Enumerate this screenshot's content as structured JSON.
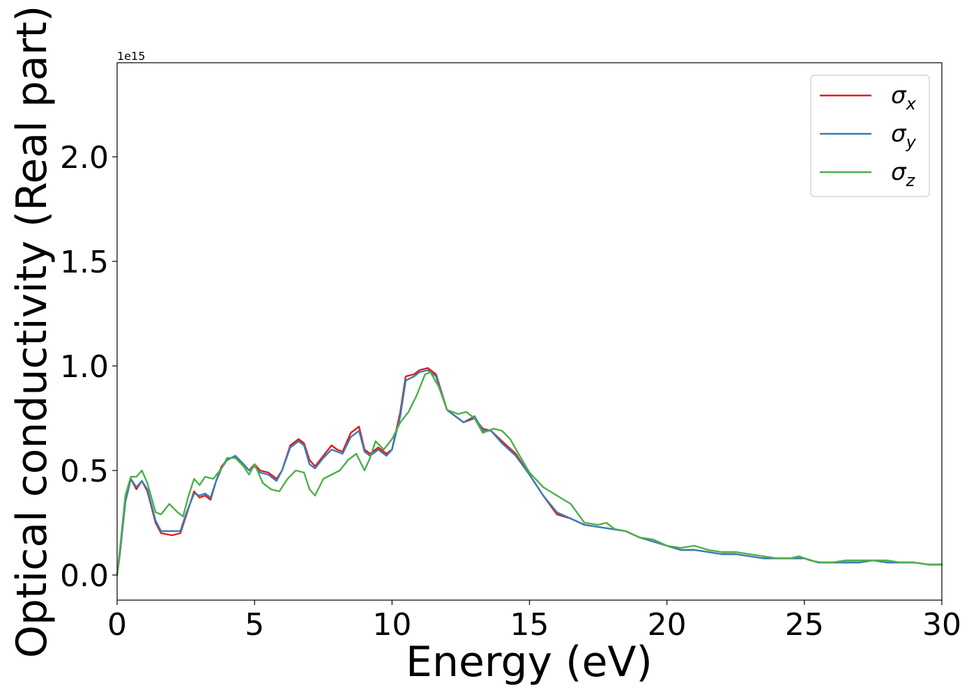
{
  "chart_data": {
    "type": "line",
    "title": "",
    "xlabel": "Energy (eV)",
    "ylabel": "Optical conductivity (Real part)",
    "offset_text": "1e15",
    "xlim": [
      0,
      30
    ],
    "ylim": [
      -0.12,
      2.45
    ],
    "y_scale_factor": 1000000000000000.0,
    "x_ticks": [
      0,
      5,
      10,
      15,
      20,
      25,
      30
    ],
    "x_tick_labels": [
      "0",
      "5",
      "10",
      "15",
      "20",
      "25",
      "30"
    ],
    "y_ticks": [
      0.0,
      0.5,
      1.0,
      1.5,
      2.0
    ],
    "y_tick_labels": [
      "0.0",
      "0.5",
      "1.0",
      "1.5",
      "2.0"
    ],
    "grid": false,
    "legend_position": "top-right",
    "legend": [
      {
        "base": "σ",
        "sub": "x"
      },
      {
        "base": "σ",
        "sub": "y"
      },
      {
        "base": "σ",
        "sub": "z"
      }
    ],
    "series": [
      {
        "name": "σx",
        "color": "#e41a1c",
        "points": [
          [
            0,
            0
          ],
          [
            0.1,
            0.1
          ],
          [
            0.3,
            0.35
          ],
          [
            0.5,
            0.46
          ],
          [
            0.7,
            0.41
          ],
          [
            0.9,
            0.45
          ],
          [
            1.1,
            0.4
          ],
          [
            1.4,
            0.25
          ],
          [
            1.6,
            0.2
          ],
          [
            2.0,
            0.19
          ],
          [
            2.3,
            0.2
          ],
          [
            2.5,
            0.28
          ],
          [
            2.8,
            0.4
          ],
          [
            3.0,
            0.37
          ],
          [
            3.2,
            0.38
          ],
          [
            3.4,
            0.36
          ],
          [
            3.6,
            0.45
          ],
          [
            3.8,
            0.52
          ],
          [
            4.0,
            0.55
          ],
          [
            4.3,
            0.57
          ],
          [
            4.6,
            0.53
          ],
          [
            4.8,
            0.5
          ],
          [
            5.0,
            0.53
          ],
          [
            5.2,
            0.5
          ],
          [
            5.5,
            0.49
          ],
          [
            5.8,
            0.46
          ],
          [
            6.0,
            0.5
          ],
          [
            6.3,
            0.62
          ],
          [
            6.6,
            0.65
          ],
          [
            6.8,
            0.63
          ],
          [
            7.0,
            0.55
          ],
          [
            7.2,
            0.52
          ],
          [
            7.5,
            0.57
          ],
          [
            7.8,
            0.62
          ],
          [
            8.0,
            0.6
          ],
          [
            8.2,
            0.59
          ],
          [
            8.5,
            0.68
          ],
          [
            8.8,
            0.71
          ],
          [
            9.0,
            0.6
          ],
          [
            9.2,
            0.58
          ],
          [
            9.5,
            0.61
          ],
          [
            9.8,
            0.58
          ],
          [
            10.0,
            0.6
          ],
          [
            10.3,
            0.78
          ],
          [
            10.5,
            0.95
          ],
          [
            10.8,
            0.96
          ],
          [
            11.0,
            0.98
          ],
          [
            11.3,
            0.99
          ],
          [
            11.6,
            0.96
          ],
          [
            12.0,
            0.79
          ],
          [
            12.3,
            0.76
          ],
          [
            12.6,
            0.73
          ],
          [
            13.0,
            0.75
          ],
          [
            13.3,
            0.7
          ],
          [
            13.6,
            0.69
          ],
          [
            14.0,
            0.64
          ],
          [
            14.5,
            0.58
          ],
          [
            15.0,
            0.48
          ],
          [
            15.5,
            0.38
          ],
          [
            16.0,
            0.29
          ],
          [
            16.5,
            0.27
          ],
          [
            17.0,
            0.24
          ],
          [
            17.5,
            0.23
          ],
          [
            18.0,
            0.22
          ],
          [
            18.5,
            0.21
          ],
          [
            19.0,
            0.18
          ],
          [
            19.5,
            0.16
          ],
          [
            20.0,
            0.14
          ],
          [
            20.5,
            0.12
          ],
          [
            21.0,
            0.12
          ],
          [
            21.5,
            0.11
          ],
          [
            22.0,
            0.1
          ],
          [
            22.5,
            0.1
          ],
          [
            23.0,
            0.09
          ],
          [
            23.5,
            0.08
          ],
          [
            24.0,
            0.08
          ],
          [
            24.5,
            0.08
          ],
          [
            25.0,
            0.08
          ],
          [
            25.5,
            0.06
          ],
          [
            26.0,
            0.06
          ],
          [
            26.5,
            0.06
          ],
          [
            27.0,
            0.06
          ],
          [
            27.5,
            0.07
          ],
          [
            28.0,
            0.06
          ],
          [
            28.5,
            0.06
          ],
          [
            29.0,
            0.06
          ],
          [
            29.5,
            0.05
          ],
          [
            30.0,
            0.05
          ]
        ]
      },
      {
        "name": "σy",
        "color": "#377eb8",
        "points": [
          [
            0,
            0
          ],
          [
            0.1,
            0.1
          ],
          [
            0.3,
            0.35
          ],
          [
            0.5,
            0.46
          ],
          [
            0.7,
            0.42
          ],
          [
            0.9,
            0.45
          ],
          [
            1.1,
            0.41
          ],
          [
            1.4,
            0.26
          ],
          [
            1.6,
            0.21
          ],
          [
            2.0,
            0.21
          ],
          [
            2.3,
            0.21
          ],
          [
            2.5,
            0.29
          ],
          [
            2.8,
            0.39
          ],
          [
            3.0,
            0.38
          ],
          [
            3.2,
            0.39
          ],
          [
            3.4,
            0.37
          ],
          [
            3.6,
            0.45
          ],
          [
            3.8,
            0.51
          ],
          [
            4.0,
            0.55
          ],
          [
            4.3,
            0.57
          ],
          [
            4.6,
            0.53
          ],
          [
            4.8,
            0.5
          ],
          [
            5.0,
            0.52
          ],
          [
            5.2,
            0.49
          ],
          [
            5.5,
            0.48
          ],
          [
            5.8,
            0.45
          ],
          [
            6.0,
            0.5
          ],
          [
            6.3,
            0.61
          ],
          [
            6.6,
            0.64
          ],
          [
            6.8,
            0.62
          ],
          [
            7.0,
            0.53
          ],
          [
            7.2,
            0.51
          ],
          [
            7.5,
            0.56
          ],
          [
            7.8,
            0.6
          ],
          [
            8.0,
            0.59
          ],
          [
            8.2,
            0.58
          ],
          [
            8.5,
            0.66
          ],
          [
            8.8,
            0.69
          ],
          [
            9.0,
            0.59
          ],
          [
            9.2,
            0.57
          ],
          [
            9.5,
            0.6
          ],
          [
            9.8,
            0.57
          ],
          [
            10.0,
            0.6
          ],
          [
            10.3,
            0.76
          ],
          [
            10.5,
            0.93
          ],
          [
            10.8,
            0.95
          ],
          [
            11.0,
            0.97
          ],
          [
            11.3,
            0.98
          ],
          [
            11.6,
            0.95
          ],
          [
            12.0,
            0.79
          ],
          [
            12.3,
            0.76
          ],
          [
            12.6,
            0.73
          ],
          [
            13.0,
            0.76
          ],
          [
            13.3,
            0.69
          ],
          [
            13.6,
            0.69
          ],
          [
            14.0,
            0.63
          ],
          [
            14.5,
            0.57
          ],
          [
            15.0,
            0.48
          ],
          [
            15.5,
            0.38
          ],
          [
            16.0,
            0.3
          ],
          [
            16.5,
            0.27
          ],
          [
            17.0,
            0.24
          ],
          [
            17.5,
            0.23
          ],
          [
            18.0,
            0.22
          ],
          [
            18.5,
            0.21
          ],
          [
            19.0,
            0.18
          ],
          [
            19.5,
            0.16
          ],
          [
            20.0,
            0.14
          ],
          [
            20.5,
            0.12
          ],
          [
            21.0,
            0.12
          ],
          [
            21.5,
            0.11
          ],
          [
            22.0,
            0.1
          ],
          [
            22.5,
            0.1
          ],
          [
            23.0,
            0.09
          ],
          [
            23.5,
            0.08
          ],
          [
            24.0,
            0.08
          ],
          [
            24.5,
            0.08
          ],
          [
            25.0,
            0.08
          ],
          [
            25.5,
            0.06
          ],
          [
            26.0,
            0.06
          ],
          [
            26.5,
            0.06
          ],
          [
            27.0,
            0.06
          ],
          [
            27.5,
            0.07
          ],
          [
            28.0,
            0.06
          ],
          [
            28.5,
            0.06
          ],
          [
            29.0,
            0.06
          ],
          [
            29.5,
            0.05
          ],
          [
            30.0,
            0.05
          ]
        ]
      },
      {
        "name": "σz",
        "color": "#4daf4a",
        "points": [
          [
            0,
            0
          ],
          [
            0.1,
            0.12
          ],
          [
            0.3,
            0.38
          ],
          [
            0.5,
            0.47
          ],
          [
            0.7,
            0.47
          ],
          [
            0.9,
            0.5
          ],
          [
            1.1,
            0.44
          ],
          [
            1.4,
            0.3
          ],
          [
            1.6,
            0.29
          ],
          [
            1.9,
            0.34
          ],
          [
            2.2,
            0.3
          ],
          [
            2.4,
            0.28
          ],
          [
            2.6,
            0.38
          ],
          [
            2.8,
            0.46
          ],
          [
            3.0,
            0.43
          ],
          [
            3.2,
            0.47
          ],
          [
            3.5,
            0.46
          ],
          [
            3.8,
            0.51
          ],
          [
            4.0,
            0.56
          ],
          [
            4.3,
            0.56
          ],
          [
            4.6,
            0.52
          ],
          [
            4.8,
            0.48
          ],
          [
            5.0,
            0.53
          ],
          [
            5.3,
            0.44
          ],
          [
            5.6,
            0.41
          ],
          [
            5.9,
            0.4
          ],
          [
            6.2,
            0.46
          ],
          [
            6.5,
            0.5
          ],
          [
            6.8,
            0.49
          ],
          [
            7.0,
            0.41
          ],
          [
            7.2,
            0.38
          ],
          [
            7.5,
            0.46
          ],
          [
            7.8,
            0.48
          ],
          [
            8.1,
            0.5
          ],
          [
            8.4,
            0.55
          ],
          [
            8.7,
            0.58
          ],
          [
            9.0,
            0.5
          ],
          [
            9.2,
            0.56
          ],
          [
            9.4,
            0.64
          ],
          [
            9.7,
            0.6
          ],
          [
            10.0,
            0.65
          ],
          [
            10.3,
            0.73
          ],
          [
            10.6,
            0.78
          ],
          [
            10.9,
            0.86
          ],
          [
            11.2,
            0.96
          ],
          [
            11.4,
            0.97
          ],
          [
            11.7,
            0.9
          ],
          [
            12.0,
            0.79
          ],
          [
            12.4,
            0.77
          ],
          [
            12.7,
            0.78
          ],
          [
            13.0,
            0.75
          ],
          [
            13.3,
            0.68
          ],
          [
            13.7,
            0.7
          ],
          [
            14.0,
            0.69
          ],
          [
            14.3,
            0.65
          ],
          [
            14.6,
            0.58
          ],
          [
            15.0,
            0.49
          ],
          [
            15.5,
            0.42
          ],
          [
            16.0,
            0.38
          ],
          [
            16.5,
            0.34
          ],
          [
            17.0,
            0.25
          ],
          [
            17.5,
            0.24
          ],
          [
            17.8,
            0.25
          ],
          [
            18.1,
            0.22
          ],
          [
            18.5,
            0.21
          ],
          [
            19.0,
            0.18
          ],
          [
            19.5,
            0.17
          ],
          [
            20.0,
            0.14
          ],
          [
            20.5,
            0.13
          ],
          [
            21.0,
            0.14
          ],
          [
            21.5,
            0.12
          ],
          [
            22.0,
            0.11
          ],
          [
            22.5,
            0.11
          ],
          [
            23.0,
            0.1
          ],
          [
            23.5,
            0.09
          ],
          [
            24.0,
            0.08
          ],
          [
            24.5,
            0.08
          ],
          [
            24.8,
            0.09
          ],
          [
            25.2,
            0.07
          ],
          [
            25.6,
            0.06
          ],
          [
            26.0,
            0.06
          ],
          [
            26.5,
            0.07
          ],
          [
            27.0,
            0.07
          ],
          [
            27.5,
            0.07
          ],
          [
            28.0,
            0.07
          ],
          [
            28.5,
            0.06
          ],
          [
            29.0,
            0.06
          ],
          [
            29.5,
            0.05
          ],
          [
            30.0,
            0.05
          ]
        ]
      }
    ]
  }
}
